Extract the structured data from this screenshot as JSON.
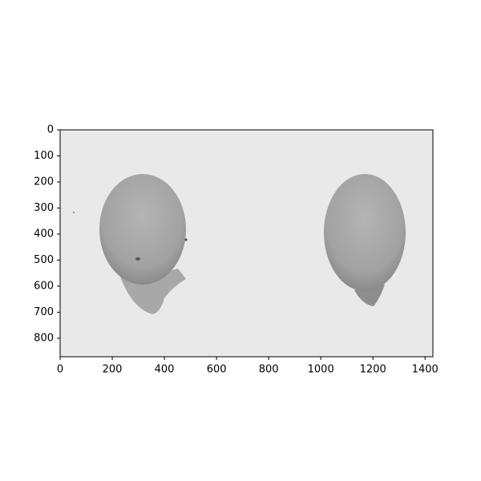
{
  "chart_data": {
    "type": "image",
    "xlim": [
      0,
      1430
    ],
    "ylim": [
      871,
      0
    ],
    "xticks": [
      0,
      200,
      400,
      600,
      800,
      1000,
      1200,
      1400
    ],
    "yticks": [
      0,
      100,
      200,
      300,
      400,
      500,
      600,
      700,
      800
    ]
  }
}
